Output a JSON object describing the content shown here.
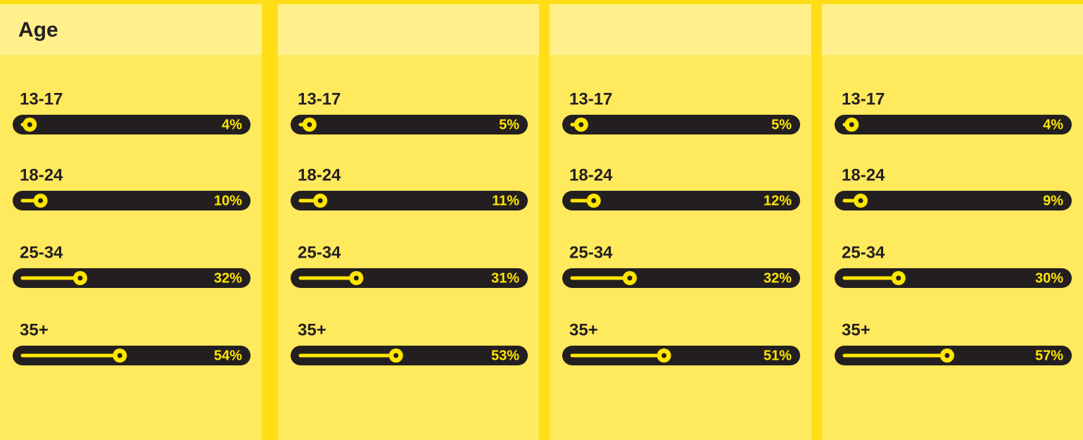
{
  "chart_data": [
    {
      "type": "bar",
      "title": "Age",
      "categories": [
        "13-17",
        "18-24",
        "25-34",
        "35+"
      ],
      "values": [
        4,
        10,
        32,
        54
      ],
      "value_labels": [
        "4%",
        "10%",
        "32%",
        "54%"
      ],
      "xlim": [
        0,
        100
      ],
      "color": "#ffe600"
    },
    {
      "type": "bar",
      "categories": [
        "13-17",
        "18-24",
        "25-34",
        "35+"
      ],
      "values": [
        5,
        11,
        31,
        53
      ],
      "value_labels": [
        "5%",
        "11%",
        "31%",
        "53%"
      ],
      "xlim": [
        0,
        100
      ],
      "color": "#ffe600"
    },
    {
      "type": "bar",
      "categories": [
        "13-17",
        "18-24",
        "25-34",
        "35+"
      ],
      "values": [
        5,
        12,
        32,
        51
      ],
      "value_labels": [
        "5%",
        "12%",
        "32%",
        "51%"
      ],
      "xlim": [
        0,
        100
      ],
      "color": "#ffe600"
    },
    {
      "type": "bar",
      "categories": [
        "13-17",
        "18-24",
        "25-34",
        "35+"
      ],
      "values": [
        4,
        9,
        30,
        57
      ],
      "value_labels": [
        "4%",
        "9%",
        "30%",
        "57%"
      ],
      "xlim": [
        0,
        100
      ],
      "color": "#ffe600"
    }
  ]
}
